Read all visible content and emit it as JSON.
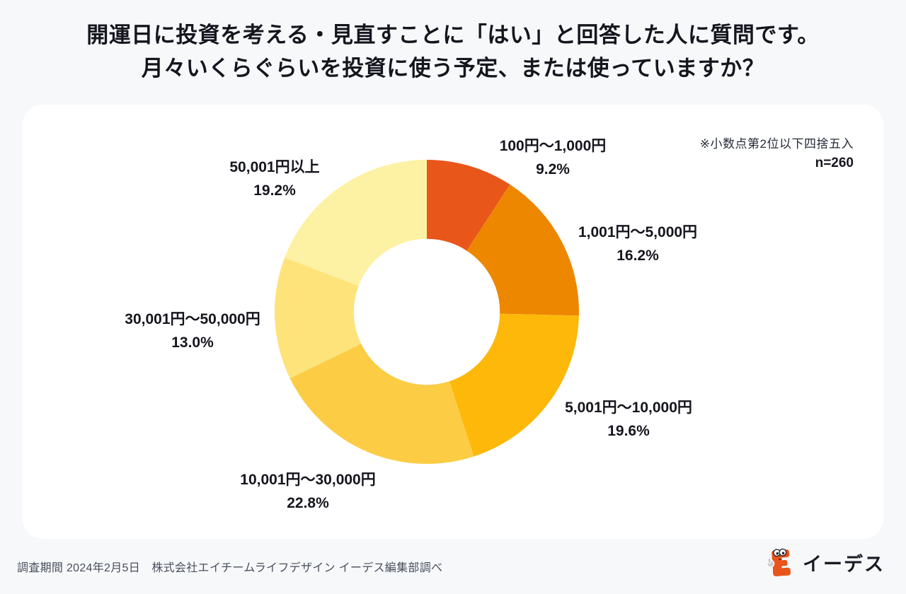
{
  "title": {
    "line1": "開運日に投資を考える・見直すことに「はい」と回答した人に質問です。",
    "line2": "月々いくらぐらいを投資に使う予定、または使っていますか？"
  },
  "chart_data": {
    "type": "pie",
    "subtype": "donut",
    "title": "月々いくらぐらいを投資に使う予定、または使っていますか？",
    "start_angle_deg": 0,
    "direction": "clockwise",
    "hole_ratio": 0.48,
    "note": "※小数点第2位以下四捨五入",
    "sample_size_label": "n=260",
    "segments": [
      {
        "label": "100円〜1,000円",
        "value": 9.2,
        "pct_label": "9.2%",
        "color": "#E9561A"
      },
      {
        "label": "1,001円〜5,000円",
        "value": 16.2,
        "pct_label": "16.2%",
        "color": "#EE8700"
      },
      {
        "label": "5,001円〜10,000円",
        "value": 19.6,
        "pct_label": "19.6%",
        "color": "#FDB80A"
      },
      {
        "label": "10,001円〜30,000円",
        "value": 22.8,
        "pct_label": "22.8%",
        "color": "#FCCC45"
      },
      {
        "label": "30,001円〜50,000円",
        "value": 13.0,
        "pct_label": "13.0%",
        "color": "#FDE37A"
      },
      {
        "label": "50,001円以上",
        "value": 19.2,
        "pct_label": "19.2%",
        "color": "#FDF1A3"
      }
    ]
  },
  "footer": {
    "source_text": "調査期間 2024年2月5日　株式会社エイチームライフデザイン イーデス編集部調べ",
    "brand_name": "イーデス"
  },
  "colors": {
    "accent": "#E9561A",
    "background": "#F7F8FA",
    "card": "#FFFFFF",
    "text": "#15151E"
  }
}
